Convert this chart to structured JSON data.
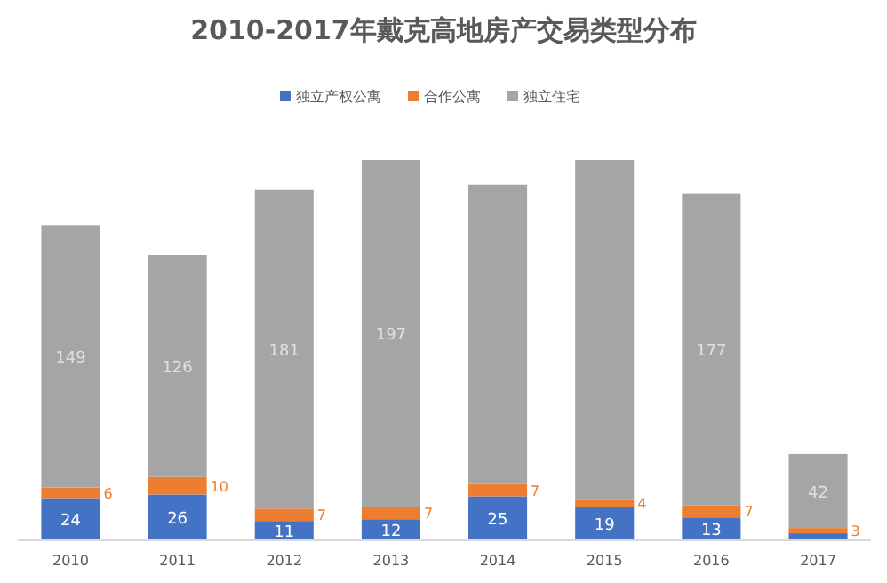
{
  "chart_data": {
    "type": "bar",
    "title": "2010-2017年戴克高地房产交易类型分布",
    "stacked": true,
    "legend": "top",
    "categories": [
      "2010",
      "2011",
      "2012",
      "2013",
      "2014",
      "2015",
      "2016",
      "2017"
    ],
    "series": [
      {
        "name": "独立产权公寓",
        "color": "#4472c4",
        "values": [
          24,
          26,
          11,
          12,
          25,
          19,
          13,
          4
        ],
        "value_labels": [
          "24",
          "26",
          "11",
          "12",
          "25",
          "19",
          "13",
          null
        ]
      },
      {
        "name": "合作公寓",
        "color": "#ed7d31",
        "values": [
          6,
          10,
          7,
          7,
          7,
          4,
          7,
          3
        ],
        "value_labels": [
          "6",
          "10",
          "7",
          "7",
          "7",
          "4",
          "7",
          "3"
        ]
      },
      {
        "name": "独立住宅",
        "color": "#a5a5a5",
        "values": [
          149,
          126,
          181,
          197,
          170,
          193,
          177,
          42
        ],
        "value_labels": [
          "149",
          "126",
          "181",
          "197",
          null,
          null,
          "177",
          "42"
        ]
      }
    ]
  }
}
